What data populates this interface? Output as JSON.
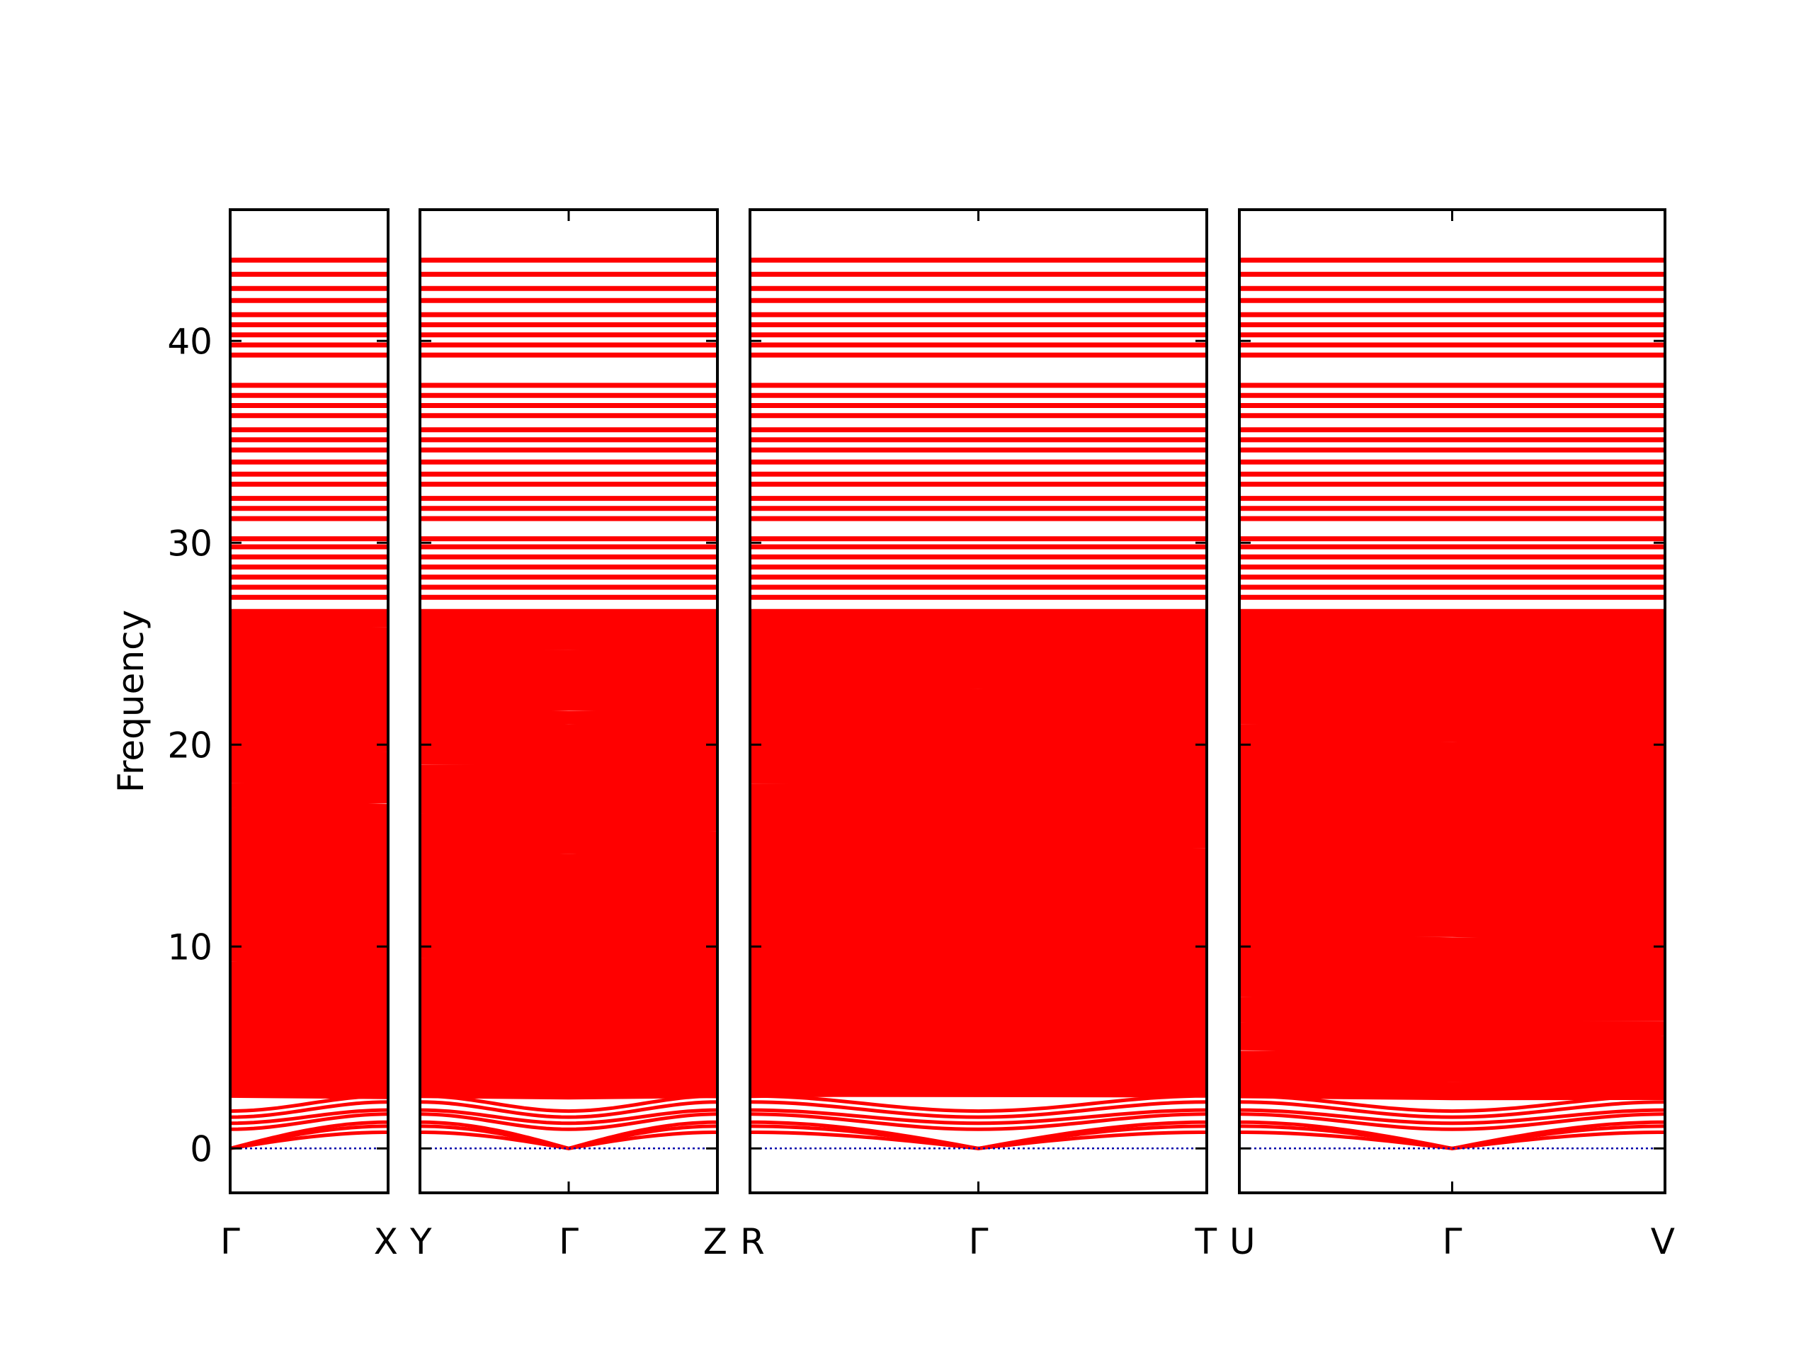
{
  "chart_data": {
    "type": "line",
    "ylabel": "Frequency",
    "ylim": [
      -2.2,
      46.5
    ],
    "yticks": [
      "0",
      "10",
      "20",
      "30",
      "40"
    ],
    "ytick_values": [
      0,
      10,
      20,
      30,
      40
    ],
    "colors": {
      "band": "#ff0000",
      "zero_line": "#0000aa",
      "frame": "#000000",
      "background": "#ffffff"
    },
    "grid": false,
    "legend": "none",
    "panels": [
      {
        "segments": [
          {
            "start": "Γ",
            "end": "X"
          }
        ],
        "labels": [
          "Γ",
          "X"
        ]
      },
      {
        "segments": [
          {
            "start": "Y",
            "end": "Γ"
          },
          {
            "start": "Γ",
            "end": "Z"
          }
        ],
        "labels": [
          "Y",
          "Γ",
          "Z"
        ]
      },
      {
        "segments": [
          {
            "start": "R",
            "end": "Γ"
          },
          {
            "start": "Γ",
            "end": "T"
          }
        ],
        "labels": [
          "R",
          "Γ",
          "T"
        ]
      },
      {
        "segments": [
          {
            "start": "U",
            "end": "Γ"
          },
          {
            "start": "Γ",
            "end": "V"
          }
        ],
        "labels": [
          "U",
          "Γ",
          "V"
        ]
      }
    ],
    "series": [
      {
        "values_at_gamma": [
          0,
          0,
          0
        ],
        "values_at_zone_boundary": [
          0.8,
          1.1,
          1.3
        ]
      },
      {
        "values_at_gamma": [
          0.95,
          1.25,
          1.55,
          1.85
        ],
        "values_at_zone_boundary": [
          1.7,
          1.9,
          2.3,
          2.6
        ]
      },
      {
        "flat_band_values": [
          26.6,
          27.3,
          27.8,
          28.3,
          28.8,
          29.3,
          29.8,
          30.2,
          31.2,
          31.7,
          32.2,
          32.9,
          33.4,
          34.0,
          34.6,
          35.1,
          35.6,
          36.3,
          36.8,
          37.3,
          37.8,
          39.3,
          39.8,
          40.3,
          40.8,
          41.3,
          42.0,
          42.6,
          43.3,
          44.0
        ],
        "dense_range": [
          2.6,
          26.4
        ]
      }
    ]
  }
}
